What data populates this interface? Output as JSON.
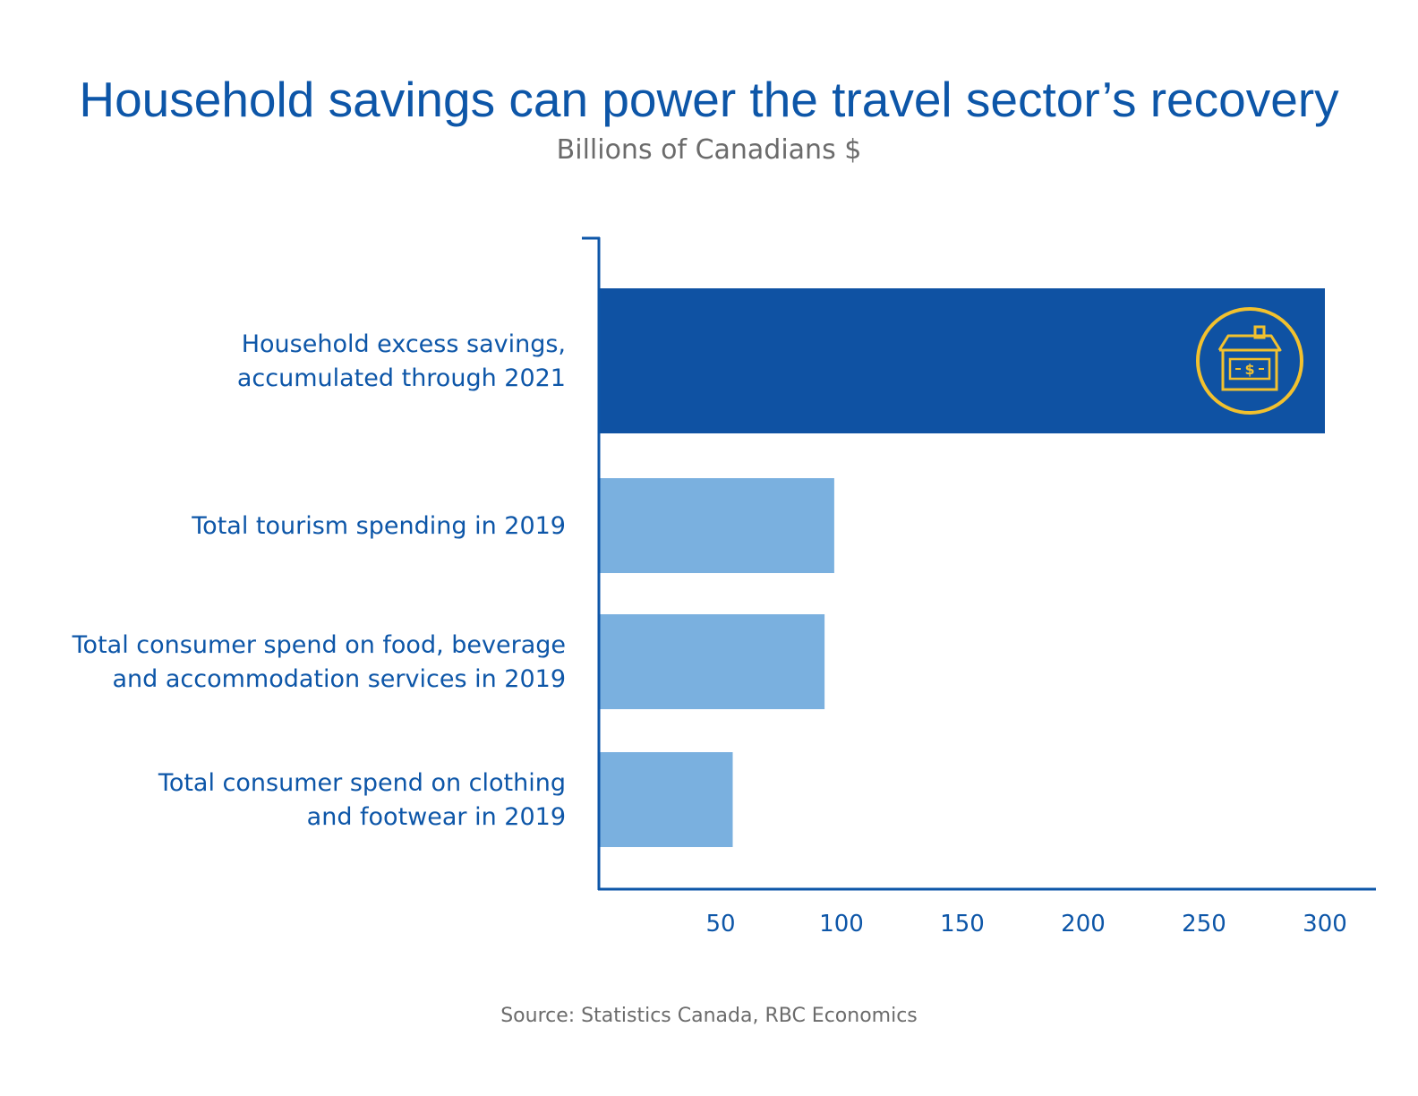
{
  "title": "Household savings can power the travel sector’s recovery",
  "subtitle": "Billions of Canadians $",
  "source": "Source: Statistics Canada, RBC Economics",
  "colors": {
    "highlight_bar": "#0f52a3",
    "bar": "#7ab0df",
    "axis": "#0d56a8",
    "text": "#0d56a8",
    "icon": "#f2c12e"
  },
  "chart_data": {
    "type": "bar",
    "orientation": "horizontal",
    "categories": [
      [
        "Household excess savings,",
        "accumulated through 2021"
      ],
      [
        "Total tourism spending in 2019"
      ],
      [
        "Total consumer spend on food, beverage",
        "and accommodation services in 2019"
      ],
      [
        "Total consumer spend on clothing",
        "and footwear in 2019"
      ]
    ],
    "values": [
      300,
      97,
      93,
      55
    ],
    "highlight_index": 0,
    "highlight_icon": "house-money-icon",
    "xlim": [
      0,
      320
    ],
    "xticks": [
      50,
      100,
      150,
      200,
      250,
      300
    ],
    "xtick_labels": [
      "50",
      "100",
      "150",
      "200",
      "250",
      "300"
    ],
    "xlabel": "",
    "ylabel": "",
    "grid": false,
    "legend": "none"
  }
}
